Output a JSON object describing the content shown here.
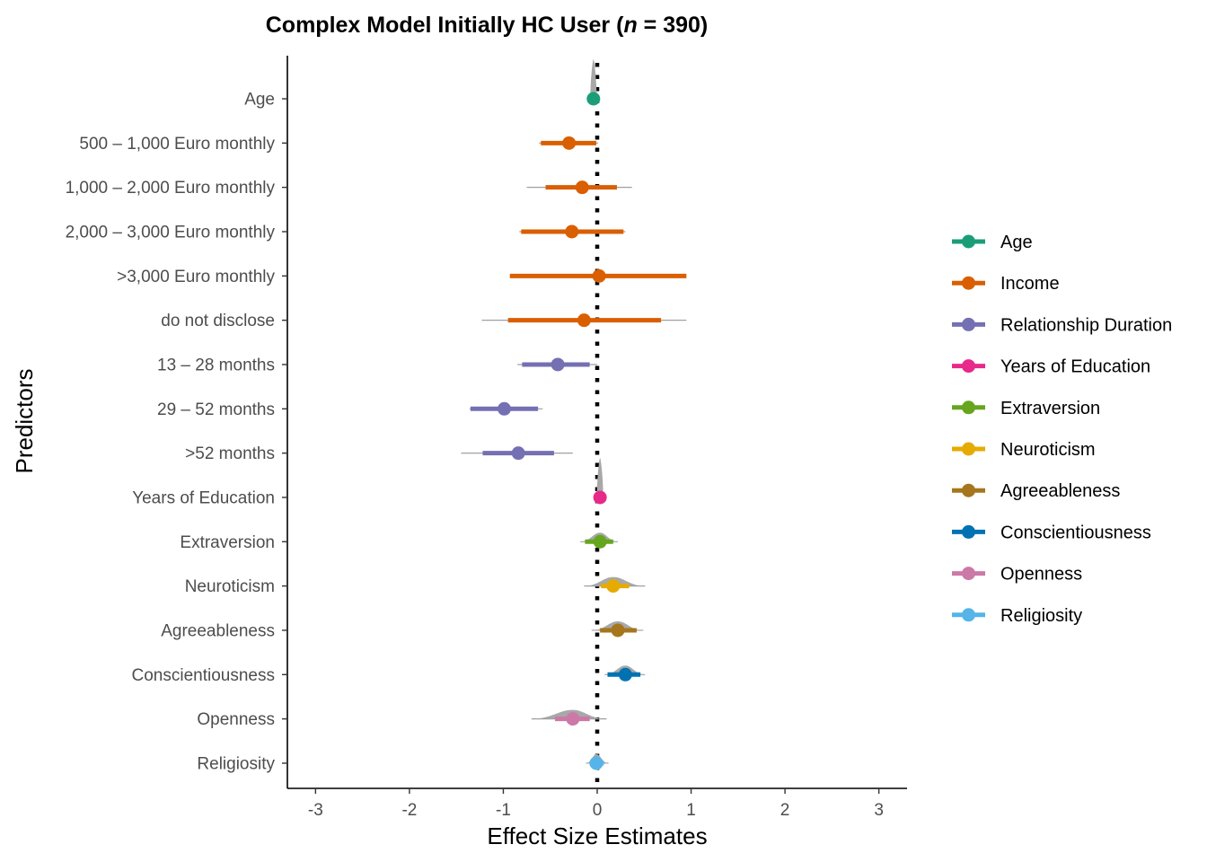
{
  "title_prefix": "Complex Model Initially HC User (",
  "title_n": "n",
  "title_suffix": " = 390)",
  "chart_data": {
    "type": "forest",
    "xlabel": "Effect Size Estimates",
    "ylabel": "Predictors",
    "xlim": [
      -3.3,
      3.3
    ],
    "xticks": [
      -3,
      -2,
      -1,
      0,
      1,
      2,
      3
    ],
    "reference_line_x": 0,
    "grid": false,
    "legend_position": "right",
    "predictors": [
      {
        "label": "Age",
        "group": "Age",
        "estimate": -0.04,
        "ci_outer": [
          -0.06,
          -0.02
        ],
        "ci_inner": [
          -0.05,
          -0.03
        ],
        "density": true
      },
      {
        "label": "500 – 1,000 Euro monthly",
        "group": "Income",
        "estimate": -0.3,
        "ci_outer": [
          -0.62,
          0.01
        ],
        "ci_inner": [
          -0.6,
          -0.01
        ]
      },
      {
        "label": "1,000 – 2,000 Euro monthly",
        "group": "Income",
        "estimate": -0.16,
        "ci_outer": [
          -0.75,
          0.37
        ],
        "ci_inner": [
          -0.55,
          0.21
        ]
      },
      {
        "label": "2,000 – 3,000 Euro monthly",
        "group": "Income",
        "estimate": -0.27,
        "ci_outer": [
          -0.83,
          0.3
        ],
        "ci_inner": [
          -0.81,
          0.28
        ]
      },
      {
        "label": ">3,000 Euro monthly",
        "group": "Income",
        "estimate": 0.02,
        "ci_outer": [
          -0.93,
          0.95
        ],
        "ci_inner": [
          -0.93,
          0.95
        ]
      },
      {
        "label": "do not disclose",
        "group": "Income",
        "estimate": -0.14,
        "ci_outer": [
          -1.23,
          0.95
        ],
        "ci_inner": [
          -0.95,
          0.68
        ]
      },
      {
        "label": "13 – 28 months",
        "group": "Relationship Duration",
        "estimate": -0.42,
        "ci_outer": [
          -0.85,
          0.0
        ],
        "ci_inner": [
          -0.8,
          -0.08
        ]
      },
      {
        "label": "29 – 52 months",
        "group": "Relationship Duration",
        "estimate": -0.99,
        "ci_outer": [
          -1.36,
          -0.58
        ],
        "ci_inner": [
          -1.35,
          -0.63
        ]
      },
      {
        "label": ">52 months",
        "group": "Relationship Duration",
        "estimate": -0.84,
        "ci_outer": [
          -1.45,
          -0.26
        ],
        "ci_inner": [
          -1.22,
          -0.46
        ]
      },
      {
        "label": "Years of Education",
        "group": "Years of Education",
        "estimate": 0.03,
        "ci_outer": [
          0.01,
          0.05
        ],
        "ci_inner": [
          0.02,
          0.04
        ],
        "density": true
      },
      {
        "label": "Extraversion",
        "group": "Extraversion",
        "estimate": 0.03,
        "ci_outer": [
          -0.18,
          0.22
        ],
        "ci_inner": [
          -0.13,
          0.17
        ],
        "density": true
      },
      {
        "label": "Neuroticism",
        "group": "Neuroticism",
        "estimate": 0.17,
        "ci_outer": [
          -0.14,
          0.51
        ],
        "ci_inner": [
          0.04,
          0.34
        ],
        "density": true
      },
      {
        "label": "Agreeableness",
        "group": "Agreeableness",
        "estimate": 0.22,
        "ci_outer": [
          -0.06,
          0.49
        ],
        "ci_inner": [
          0.03,
          0.42
        ],
        "density": true
      },
      {
        "label": "Conscientiousness",
        "group": "Conscientiousness",
        "estimate": 0.3,
        "ci_outer": [
          0.08,
          0.51
        ],
        "ci_inner": [
          0.11,
          0.46
        ],
        "density": true
      },
      {
        "label": "Openness",
        "group": "Openness",
        "estimate": -0.26,
        "ci_outer": [
          -0.7,
          0.1
        ],
        "ci_inner": [
          -0.45,
          -0.08
        ],
        "density": true
      },
      {
        "label": "Religiosity",
        "group": "Religiosity",
        "estimate": -0.01,
        "ci_outer": [
          -0.12,
          0.12
        ],
        "ci_inner": [
          -0.08,
          0.07
        ],
        "density": true
      }
    ],
    "legend": [
      {
        "name": "Age",
        "color": "#1b9e77"
      },
      {
        "name": "Income",
        "color": "#d95f02"
      },
      {
        "name": "Relationship Duration",
        "color": "#7570b3"
      },
      {
        "name": "Years of Education",
        "color": "#e7298a"
      },
      {
        "name": "Extraversion",
        "color": "#66a61e"
      },
      {
        "name": "Neuroticism",
        "color": "#e6ab02"
      },
      {
        "name": "Agreeableness",
        "color": "#a6761d"
      },
      {
        "name": "Conscientiousness",
        "color": "#0072b2"
      },
      {
        "name": "Openness",
        "color": "#cc79a7"
      },
      {
        "name": "Religiosity",
        "color": "#56b4e9"
      }
    ]
  }
}
